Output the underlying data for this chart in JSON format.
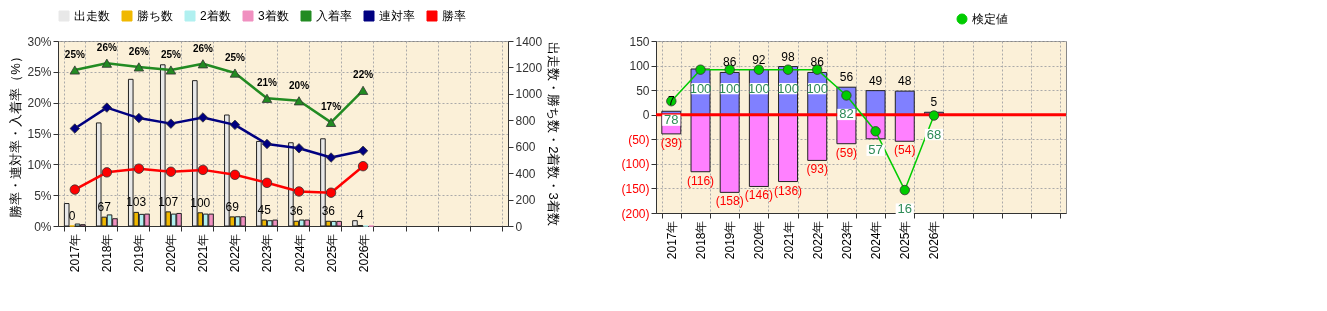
{
  "chart_data": [
    {
      "type": "bar",
      "categories": [
        "2017年",
        "2018年",
        "2019年",
        "2020年",
        "2021年",
        "2022年",
        "2023年",
        "2024年",
        "2025年",
        "2026年",
        null,
        null,
        null,
        null
      ],
      "ylabel": "勝率・連対率・入着率（%）",
      "y2label": "出走数・勝ち数・2着数・3着数",
      "ylim": [
        0,
        30
      ],
      "yticks": [
        {
          "value": 0,
          "label": "0%"
        },
        {
          "value": 5,
          "label": "5%"
        },
        {
          "value": 10,
          "label": "10%"
        },
        {
          "value": 15,
          "label": "15%"
        },
        {
          "value": 20,
          "label": "20%"
        },
        {
          "value": 25,
          "label": "25%"
        },
        {
          "value": 30,
          "label": "30%"
        }
      ],
      "y2lim": [
        0,
        1400
      ],
      "y2ticks": [
        0,
        200,
        400,
        600,
        800,
        1000,
        1200,
        1400
      ],
      "grid": true,
      "legend": "top",
      "series": [
        {
          "name": "出走数",
          "color": "#e8e8e8",
          "axis": "y2",
          "values": [
            170,
            780,
            1110,
            1220,
            1100,
            840,
            640,
            630,
            660,
            40,
            null,
            null,
            null,
            null
          ]
        },
        {
          "name": "勝ち数",
          "color": "#f0b800",
          "axis": "y2",
          "values": [
            0,
            67,
            103,
            107,
            100,
            69,
            45,
            36,
            36,
            4,
            null,
            null,
            null,
            null
          ],
          "value_labels": [
            "0",
            "67",
            "103",
            "107",
            "100",
            "69",
            "45",
            "36",
            "36",
            "4",
            null,
            null,
            null,
            null
          ]
        },
        {
          "name": "2着数",
          "color": "#b0f0f0",
          "axis": "y2",
          "values": [
            15,
            84,
            88,
            90,
            90,
            70,
            40,
            45,
            35,
            0,
            null,
            null,
            null,
            null
          ]
        },
        {
          "name": "3着数",
          "color": "#f090c0",
          "axis": "y2",
          "values": [
            10,
            55,
            90,
            95,
            90,
            70,
            45,
            45,
            35,
            0,
            null,
            null,
            null,
            null
          ]
        },
        {
          "name": "入着率",
          "type": "line",
          "color": "#228b22",
          "marker": "triangle",
          "values": [
            25.3,
            26.4,
            25.8,
            25.3,
            26.3,
            24.8,
            20.7,
            20.3,
            16.8,
            22.0,
            null,
            null,
            null,
            null
          ],
          "value_labels": [
            "25%",
            "26%",
            "26%",
            "25%",
            "26%",
            "25%",
            "21%",
            "20%",
            "17%",
            "22%",
            null,
            null,
            null,
            null
          ]
        },
        {
          "name": "連対率",
          "type": "line",
          "color": "#000080",
          "marker": "diamond",
          "values": [
            15.8,
            19.2,
            17.5,
            16.6,
            17.6,
            16.4,
            13.3,
            12.6,
            11.1,
            12.2,
            null,
            null,
            null,
            null
          ]
        },
        {
          "name": "勝率",
          "type": "line",
          "color": "#ff0000",
          "marker": "circle",
          "values": [
            5.9,
            8.7,
            9.3,
            8.8,
            9.1,
            8.3,
            7.0,
            5.6,
            5.4,
            9.7,
            null,
            null,
            null,
            null
          ]
        }
      ]
    },
    {
      "type": "bar",
      "stacked": true,
      "categories": [
        "2017年",
        "2018年",
        "2019年",
        "2020年",
        "2021年",
        "2022年",
        "2023年",
        "2024年",
        "2025年",
        "2026年",
        null,
        null,
        null,
        null
      ],
      "ylim": [
        -200,
        150
      ],
      "yticks": [
        {
          "value": -200,
          "label": "(200)"
        },
        {
          "value": -150,
          "label": "(150)"
        },
        {
          "value": -100,
          "label": "(100)"
        },
        {
          "value": -50,
          "label": "(50)"
        },
        0,
        50,
        100,
        150
      ],
      "y2lim": [
        0,
        120
      ],
      "grid": true,
      "legend": "top right",
      "ref_lines": [
        {
          "axis": "y",
          "value": 0,
          "color": "#ff0000"
        }
      ],
      "series": [
        {
          "color": "#8080ff",
          "values": [
            7,
            93,
            86,
            92,
            98,
            86,
            56,
            49,
            48,
            5,
            null,
            null,
            null,
            null
          ],
          "value_labels": [
            "7",
            null,
            "86",
            "92",
            "98",
            "86",
            "56",
            "49",
            "48",
            "5",
            null,
            null,
            null,
            null
          ]
        },
        {
          "color": "#ff80ff",
          "values": [
            -39,
            -116,
            -158,
            -146,
            -136,
            -93,
            -59,
            -49,
            -54,
            null,
            null,
            null,
            null,
            null
          ],
          "value_labels": [
            "(39)",
            "(116)",
            "(158)",
            "(146)",
            "(136)",
            "(93)",
            "(59)",
            null,
            "(54)",
            null,
            null,
            null,
            null,
            null
          ]
        },
        {
          "name": "検定値",
          "type": "line",
          "axis": "y2",
          "color": "#00cc00",
          "marker": "circle",
          "values": [
            78,
            100,
            100,
            100,
            100,
            100,
            82,
            57,
            16,
            68,
            null,
            null,
            null,
            null
          ],
          "value_labels": [
            "78",
            "100",
            "100",
            "100",
            "100",
            "100",
            "82",
            "57",
            "16",
            "68",
            null,
            null,
            null,
            null
          ]
        }
      ]
    }
  ]
}
